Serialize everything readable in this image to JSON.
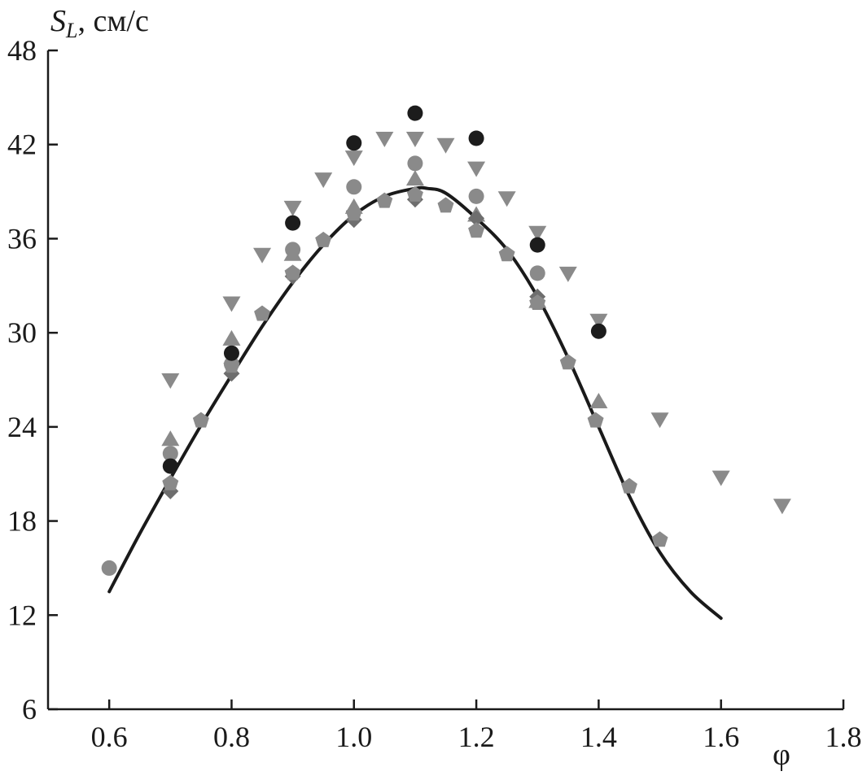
{
  "chart_data": {
    "type": "scatter",
    "title": "",
    "xlabel": "φ",
    "ylabel": {
      "symbol": "S",
      "subscript": "L",
      "unit": ", см/с"
    },
    "xlim": [
      0.5,
      1.8
    ],
    "ylim": [
      6,
      48
    ],
    "x_ticks": [
      0.6,
      0.8,
      1.0,
      1.2,
      1.4,
      1.6,
      1.8
    ],
    "x_tick_labels": [
      "0.6",
      "0.8",
      "1.0",
      "1.2",
      "1.4",
      "1.6",
      "1.8"
    ],
    "y_ticks": [
      6,
      12,
      18,
      24,
      30,
      36,
      42,
      48
    ],
    "y_tick_labels": [
      "6",
      "12",
      "18",
      "24",
      "30",
      "36",
      "42",
      "48"
    ],
    "grid": false,
    "legend": "none",
    "colors": {
      "axis": "#1a1a1a",
      "curve": "#1a1a1a",
      "dark_marker": "#1c1c1c",
      "gray_marker": "#8a8a8a",
      "dark_gray_marker": "#6e6e6e"
    },
    "series": [
      {
        "marker": "circle",
        "color": "#1c1c1c",
        "points": [
          [
            0.7,
            21.5
          ],
          [
            0.8,
            28.7
          ],
          [
            0.9,
            37.0
          ],
          [
            1.0,
            42.1
          ],
          [
            1.1,
            44.0
          ],
          [
            1.2,
            42.4
          ],
          [
            1.3,
            35.6
          ],
          [
            1.4,
            30.1
          ]
        ]
      },
      {
        "marker": "triangle-down",
        "color": "#8a8a8a",
        "points": [
          [
            0.7,
            27.0
          ],
          [
            0.8,
            31.9
          ],
          [
            0.85,
            35.0
          ],
          [
            0.9,
            38.0
          ],
          [
            0.95,
            39.8
          ],
          [
            1.0,
            41.2
          ],
          [
            1.05,
            42.4
          ],
          [
            1.1,
            42.4
          ],
          [
            1.15,
            42.0
          ],
          [
            1.2,
            40.5
          ],
          [
            1.25,
            38.6
          ],
          [
            1.3,
            36.4
          ],
          [
            1.35,
            33.8
          ],
          [
            1.4,
            30.8
          ],
          [
            1.5,
            24.5
          ],
          [
            1.6,
            20.8
          ],
          [
            1.7,
            19.0
          ]
        ]
      },
      {
        "marker": "triangle-up",
        "color": "#8a8a8a",
        "points": [
          [
            0.7,
            23.2
          ],
          [
            0.8,
            29.6
          ],
          [
            0.9,
            35.0
          ],
          [
            1.0,
            38.0
          ],
          [
            1.1,
            39.8
          ],
          [
            1.2,
            37.5
          ],
          [
            1.3,
            32.0
          ],
          [
            1.4,
            25.6
          ]
        ]
      },
      {
        "marker": "circle",
        "color": "#8a8a8a",
        "points": [
          [
            0.6,
            15.0
          ],
          [
            0.7,
            22.3
          ],
          [
            0.8,
            28.0
          ],
          [
            0.9,
            35.3
          ],
          [
            1.0,
            39.3
          ],
          [
            1.1,
            40.8
          ],
          [
            1.2,
            38.7
          ],
          [
            1.3,
            33.8
          ]
        ]
      },
      {
        "marker": "diamond",
        "color": "#6e6e6e",
        "points": [
          [
            0.7,
            19.9
          ],
          [
            0.8,
            27.4
          ],
          [
            0.9,
            33.6
          ],
          [
            1.0,
            37.2
          ],
          [
            1.1,
            38.5
          ],
          [
            1.2,
            37.3
          ],
          [
            1.3,
            32.3
          ]
        ]
      },
      {
        "marker": "pentagon",
        "color": "#8a8a8a",
        "points": [
          [
            0.7,
            20.4
          ],
          [
            0.75,
            24.4
          ],
          [
            0.8,
            27.9
          ],
          [
            0.85,
            31.2
          ],
          [
            0.9,
            33.8
          ],
          [
            0.95,
            35.9
          ],
          [
            1.0,
            37.6
          ],
          [
            1.05,
            38.4
          ],
          [
            1.1,
            38.8
          ],
          [
            1.15,
            38.1
          ],
          [
            1.2,
            36.5
          ],
          [
            1.25,
            35.0
          ],
          [
            1.3,
            31.9
          ],
          [
            1.35,
            28.1
          ],
          [
            1.395,
            24.4
          ],
          [
            1.45,
            20.2
          ],
          [
            1.5,
            16.8
          ]
        ]
      }
    ],
    "curve": {
      "x": [
        0.6,
        0.65,
        0.7,
        0.75,
        0.8,
        0.85,
        0.9,
        0.95,
        1.0,
        1.05,
        1.1,
        1.12,
        1.15,
        1.2,
        1.25,
        1.3,
        1.35,
        1.4,
        1.45,
        1.5,
        1.55,
        1.6
      ],
      "y": [
        13.5,
        17.2,
        20.7,
        24.1,
        27.3,
        30.4,
        33.2,
        35.6,
        37.5,
        38.7,
        39.2,
        39.2,
        38.9,
        37.3,
        35.3,
        32.3,
        28.4,
        24.0,
        19.6,
        16.0,
        13.5,
        11.8
      ]
    }
  }
}
